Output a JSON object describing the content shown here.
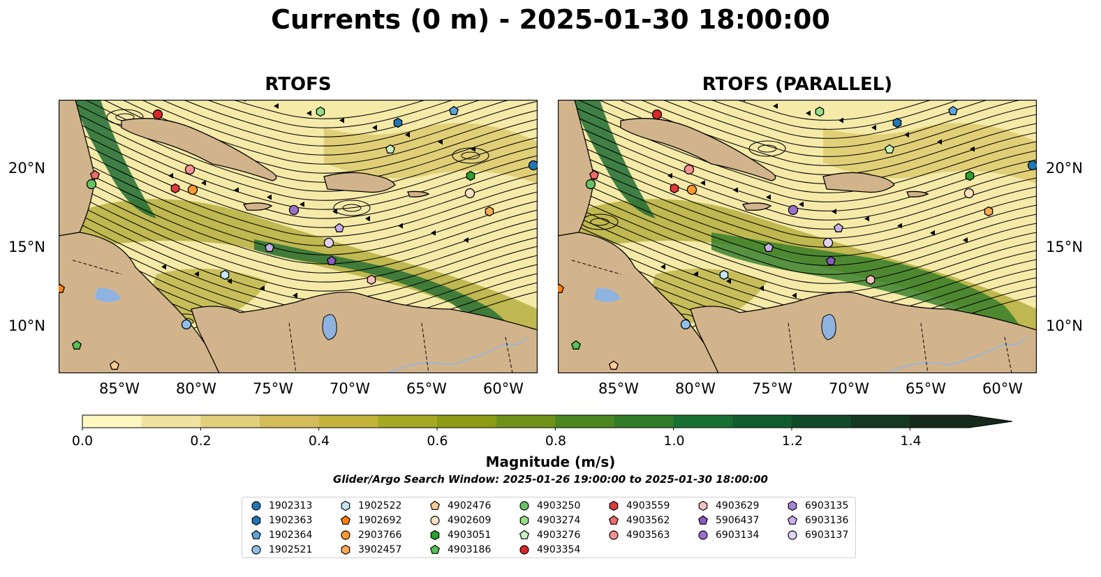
{
  "title": "Currents (0 m) - 2025-01-30 18:00:00",
  "panels": [
    {
      "title": "RTOFS"
    },
    {
      "title": "RTOFS (PARALLEL)"
    }
  ],
  "axes": {
    "x_ticks": [
      "85°W",
      "80°W",
      "75°W",
      "70°W",
      "65°W",
      "60°W"
    ],
    "y_ticks": [
      "20°N",
      "15°N",
      "10°N"
    ]
  },
  "colorbar": {
    "label": "Magnitude (m/s)",
    "ticks": [
      "0.0",
      "0.2",
      "0.4",
      "0.6",
      "0.8",
      "1.0",
      "1.2",
      "1.4"
    ],
    "min": 0.0,
    "max": 1.5,
    "extend": "max",
    "colors": [
      "#fef7c1",
      "#f0e3a0",
      "#e2cf7c",
      "#d3bc59",
      "#c3b43a",
      "#a5a822",
      "#8c9c14",
      "#6f9118",
      "#4c8620",
      "#307c28",
      "#186f32",
      "#0f5c2f",
      "#104a29",
      "#143822",
      "#17291a"
    ]
  },
  "search_window": "Glider/Argo Search Window: 2025-01-26 19:00:00 to 2025-01-30 18:00:00",
  "legend": {
    "columns": [
      [
        {
          "id": "1902313",
          "color": "#1f77b4",
          "marker": "circle"
        },
        {
          "id": "1902363",
          "color": "#1f77b4",
          "marker": "hexagon"
        },
        {
          "id": "1902364",
          "color": "#5aa5e0",
          "marker": "pentagon"
        },
        {
          "id": "1902521",
          "color": "#8fc0ea",
          "marker": "circle"
        }
      ],
      [
        {
          "id": "1902522",
          "color": "#c6e4f7",
          "marker": "hexagon"
        },
        {
          "id": "1902692",
          "color": "#ff7f0e",
          "marker": "pentagon"
        },
        {
          "id": "2903766",
          "color": "#ff9933",
          "marker": "circle"
        },
        {
          "id": "3902457",
          "color": "#ffaa55",
          "marker": "hexagon"
        }
      ],
      [
        {
          "id": "4902476",
          "color": "#ffcc99",
          "marker": "pentagon"
        },
        {
          "id": "4902609",
          "color": "#ffe0c0",
          "marker": "circle"
        },
        {
          "id": "4903051",
          "color": "#2ca02c",
          "marker": "hexagon"
        },
        {
          "id": "4903186",
          "color": "#55c055",
          "marker": "pentagon"
        }
      ],
      [
        {
          "id": "4903250",
          "color": "#66c266",
          "marker": "circle"
        },
        {
          "id": "4903274",
          "color": "#98df8a",
          "marker": "hexagon"
        },
        {
          "id": "4903276",
          "color": "#c8f2c0",
          "marker": "pentagon"
        },
        {
          "id": "4903354",
          "color": "#d62728",
          "marker": "circle"
        }
      ],
      [
        {
          "id": "4903559",
          "color": "#e03a3a",
          "marker": "hexagon"
        },
        {
          "id": "4903562",
          "color": "#ee6b6b",
          "marker": "pentagon"
        },
        {
          "id": "4903563",
          "color": "#f59090",
          "marker": "circle"
        }
      ],
      [
        {
          "id": "4903629",
          "color": "#f7c0c0",
          "marker": "hexagon"
        },
        {
          "id": "5906437",
          "color": "#8a5cc0",
          "marker": "pentagon"
        },
        {
          "id": "6903134",
          "color": "#9b6fd0",
          "marker": "circle"
        }
      ],
      [
        {
          "id": "6903135",
          "color": "#a983d6",
          "marker": "hexagon"
        },
        {
          "id": "6903136",
          "color": "#c9b0ea",
          "marker": "pentagon"
        },
        {
          "id": "6903137",
          "color": "#e2d2f5",
          "marker": "circle"
        }
      ]
    ]
  },
  "colors": {
    "land": "#d2b48c",
    "lake": "#8fb3e0",
    "river": "#9fb5d6",
    "ocean_low": "#f5eaa8",
    "ocean_mid": "#b3ab3a",
    "ocean_high": "#1f6b33",
    "streamline": "#000000"
  }
}
